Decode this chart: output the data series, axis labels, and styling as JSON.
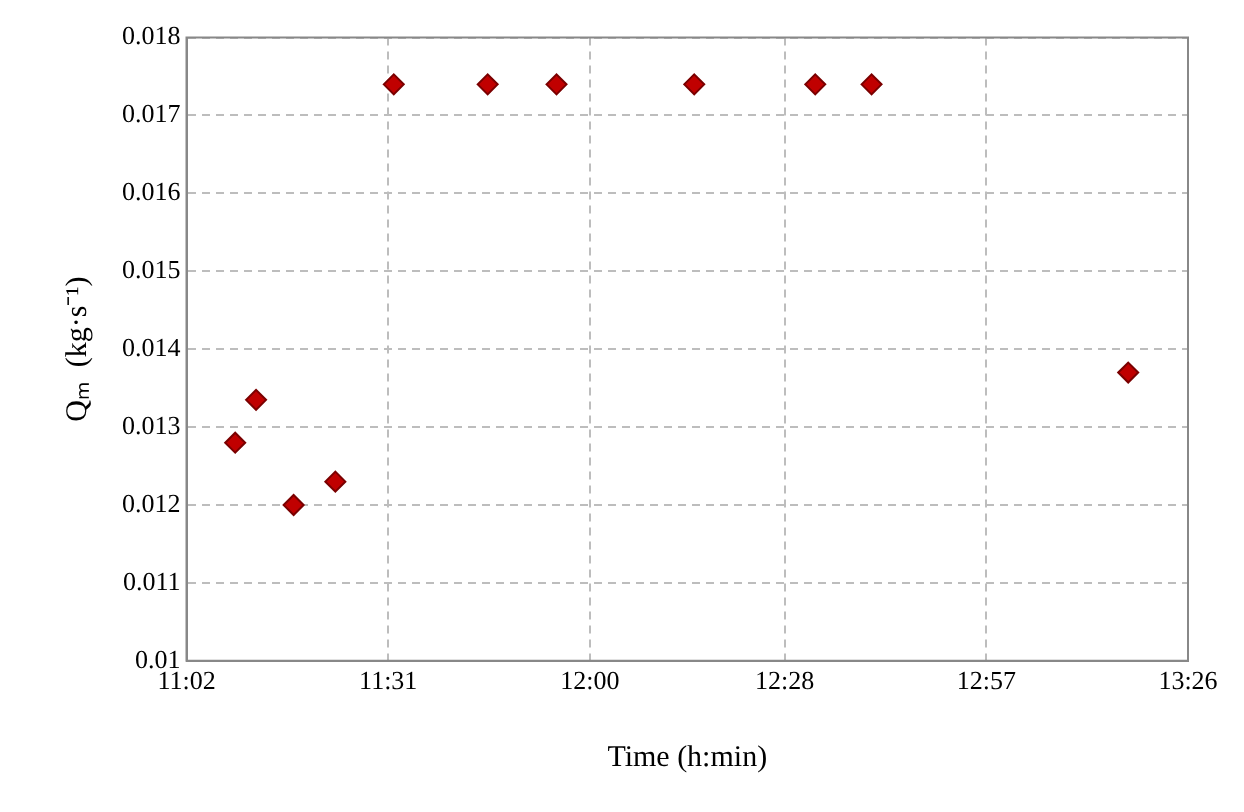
{
  "chart_data": {
    "type": "scatter",
    "xlabel": "Time (h:min)",
    "ylabel": "Qₘ  (kg·s⁻¹)",
    "x": [
      11.15,
      11.2,
      11.29,
      11.39,
      11.53,
      11.755,
      11.92,
      12.25,
      12.54,
      12.675,
      13.29
    ],
    "series": [
      {
        "color": "#c00000",
        "values": [
          0.0128,
          0.01335,
          0.012,
          0.0123,
          0.0174,
          0.0174,
          0.0174,
          0.0174,
          0.0174,
          0.0174,
          0.0137
        ]
      }
    ],
    "xlim": [
      11.0333,
      13.4333
    ],
    "xticks": [
      {
        "value": 11.0333,
        "label": "11:02"
      },
      {
        "value": 11.5167,
        "label": "11:31"
      },
      {
        "value": 12,
        "label": "12:00"
      },
      {
        "value": 12.4667,
        "label": "12:28"
      },
      {
        "value": 12.95,
        "label": "12:57"
      },
      {
        "value": 13.4333,
        "label": "13:26"
      }
    ],
    "ylim": [
      0.01,
      0.018
    ],
    "yticks": [
      0.01,
      0.011,
      0.012,
      0.013,
      0.014,
      0.015,
      0.016,
      0.017,
      0.018
    ],
    "grid": true,
    "marker": "diamond",
    "legend": false
  }
}
